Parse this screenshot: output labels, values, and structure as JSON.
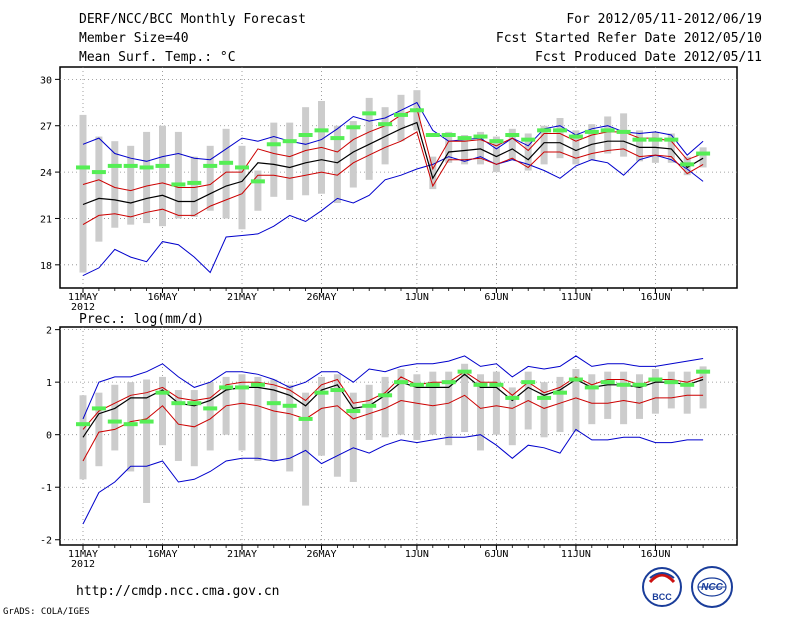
{
  "header": {
    "title": "DERF/NCC/BCC Monthly Forecast",
    "member_size": "Member Size=40",
    "variable": "Mean Surf. Temp.: °C",
    "period": "For 2012/05/11-2012/06/19",
    "start_date": "Fcst Started Refer Date 2012/05/10",
    "produced_date": "Fcst Produced Date 2012/05/11"
  },
  "footer": {
    "url": "http://cmdp.ncc.cma.gov.cn",
    "credit": "GrADS: COLA/IGES",
    "logo_left_text": "BCC",
    "logo_right_text": "NCC"
  },
  "colors": {
    "max_min": "#0000cc",
    "spread": "#cc0000",
    "mean": "#000000",
    "box": "#cccccc",
    "observed": "#55ee55",
    "grid": "#888888"
  },
  "chart_data": [
    {
      "type": "line",
      "title": "Mean Surf. Temp.: °C",
      "ylabel": "°C",
      "ylim": [
        16.5,
        30.8
      ],
      "yticks": [
        "18",
        "21",
        "24",
        "27",
        "30"
      ],
      "ytick_values": [
        18,
        21,
        24,
        27,
        30
      ],
      "x_tick_labels": [
        {
          "day": 0,
          "label": "11MAY",
          "sub": "2012"
        },
        {
          "day": 5,
          "label": "16MAY",
          "sub": ""
        },
        {
          "day": 10,
          "label": "21MAY",
          "sub": ""
        },
        {
          "day": 15,
          "label": "26MAY",
          "sub": ""
        },
        {
          "day": 21,
          "label": "1JUN",
          "sub": ""
        },
        {
          "day": 26,
          "label": "6JUN",
          "sub": ""
        },
        {
          "day": 31,
          "label": "11JUN",
          "sub": ""
        },
        {
          "day": 36,
          "label": "16JUN",
          "sub": ""
        }
      ],
      "x_count": 40,
      "series": [
        {
          "name": "max",
          "values": [
            17.3,
            17.8,
            19.0,
            18.5,
            18.2,
            19.5,
            19.3,
            18.5,
            17.5,
            19.8,
            19.9,
            20.0,
            20.5,
            21.2,
            20.8,
            21.5,
            22.3,
            22.0,
            22.5,
            23.5,
            23.8,
            24.2,
            24.5,
            25.0,
            24.7,
            25.0,
            24.5,
            24.8,
            24.5,
            24.1,
            23.6,
            24.4,
            24.8,
            24.6,
            23.8,
            24.8,
            25.1,
            24.8,
            24.2,
            23.4
          ]
        },
        {
          "name": "min",
          "values": [
            25.8,
            26.2,
            25.2,
            24.9,
            24.7,
            25.0,
            25.2,
            24.9,
            24.8,
            25.5,
            26.2,
            26.0,
            26.3,
            26.0,
            25.8,
            26.1,
            26.8,
            27.6,
            27.3,
            27.5,
            28.0,
            28.5,
            26.7,
            26.0,
            26.1,
            26.2,
            25.5,
            26.2,
            25.7,
            26.8,
            27.0,
            26.4,
            26.8,
            27.0,
            26.6,
            26.5,
            26.6,
            26.4,
            25.1,
            26.0
          ]
        },
        {
          "name": "ens_upper",
          "values": [
            23.2,
            23.5,
            23.0,
            22.8,
            23.1,
            23.3,
            23.0,
            23.0,
            23.2,
            24.0,
            24.0,
            25.5,
            25.2,
            25.0,
            25.4,
            25.6,
            25.3,
            26.1,
            26.6,
            27.0,
            27.7,
            28.1,
            24.2,
            26.0,
            26.0,
            26.1,
            25.7,
            26.2,
            25.4,
            26.5,
            26.5,
            26.0,
            26.4,
            26.6,
            26.6,
            26.2,
            26.2,
            26.0,
            24.8,
            25.2
          ]
        },
        {
          "name": "ens_mean",
          "values": [
            21.9,
            22.3,
            22.2,
            22.0,
            22.3,
            22.5,
            22.1,
            22.1,
            22.6,
            23.1,
            23.4,
            24.6,
            24.5,
            24.3,
            24.6,
            24.8,
            24.6,
            25.3,
            25.8,
            26.3,
            26.8,
            27.2,
            23.6,
            25.3,
            25.4,
            25.5,
            25.0,
            25.5,
            24.8,
            25.9,
            25.9,
            25.4,
            25.8,
            26.0,
            26.0,
            25.6,
            25.6,
            25.5,
            24.3,
            24.9
          ]
        },
        {
          "name": "ens_lower",
          "values": [
            20.6,
            21.2,
            21.3,
            21.1,
            21.4,
            21.6,
            21.2,
            21.2,
            21.8,
            22.2,
            22.6,
            23.8,
            23.8,
            23.6,
            23.8,
            24.0,
            23.8,
            24.6,
            25.1,
            25.6,
            26.0,
            26.6,
            23.1,
            24.8,
            24.8,
            24.9,
            24.5,
            24.9,
            24.3,
            25.3,
            25.3,
            24.9,
            25.2,
            25.4,
            25.5,
            25.0,
            25.1,
            25.0,
            23.9,
            24.5
          ]
        },
        {
          "name": "observed",
          "values": [
            24.3,
            24.0,
            24.4,
            24.4,
            24.3,
            24.4,
            23.2,
            23.3,
            24.4,
            24.6,
            24.3,
            23.4,
            25.8,
            26.0,
            26.4,
            26.7,
            26.2,
            26.9,
            27.8,
            27.1,
            27.7,
            28.0,
            26.4,
            26.4,
            26.2,
            26.3,
            26.0,
            26.4,
            26.1,
            26.7,
            26.7,
            26.3,
            26.6,
            26.7,
            26.6,
            26.1,
            26.1,
            26.1,
            24.5,
            25.2
          ]
        },
        {
          "name": "box_low",
          "values": [
            17.5,
            19.5,
            20.4,
            20.6,
            20.7,
            20.5,
            21.0,
            21.1,
            21.5,
            21.0,
            20.3,
            21.5,
            22.4,
            22.2,
            22.5,
            22.6,
            22.0,
            23.0,
            23.5,
            24.5,
            26.0,
            26.7,
            22.9,
            24.6,
            24.5,
            24.5,
            24.0,
            24.8,
            24.1,
            24.5,
            24.9,
            24.5,
            24.8,
            25.2,
            25.0,
            24.7,
            24.6,
            24.6,
            23.8,
            24.3
          ]
        },
        {
          "name": "box_high",
          "values": [
            27.7,
            26.3,
            26.0,
            25.7,
            26.6,
            27.0,
            26.6,
            25.0,
            25.7,
            26.8,
            25.7,
            24.1,
            27.2,
            27.2,
            28.2,
            28.6,
            27.0,
            27.3,
            28.8,
            28.2,
            29.0,
            29.3,
            25.0,
            26.6,
            26.4,
            26.6,
            26.3,
            26.8,
            26.5,
            27.0,
            27.5,
            26.7,
            27.1,
            27.6,
            27.8,
            26.7,
            26.6,
            26.5,
            25.0,
            25.6
          ]
        }
      ]
    },
    {
      "type": "line",
      "title": "Prec.: log(mm/d)",
      "ylabel": "log(mm/d)",
      "ylim": [
        -2.1,
        2.05
      ],
      "yticks": [
        "-2",
        "-1",
        "0",
        "1",
        "2"
      ],
      "ytick_values": [
        -2,
        -1,
        0,
        1,
        2
      ],
      "x_tick_labels": [
        {
          "day": 0,
          "label": "11MAY",
          "sub": "2012"
        },
        {
          "day": 5,
          "label": "16MAY",
          "sub": ""
        },
        {
          "day": 10,
          "label": "21MAY",
          "sub": ""
        },
        {
          "day": 15,
          "label": "26MAY",
          "sub": ""
        },
        {
          "day": 21,
          "label": "1JUN",
          "sub": ""
        },
        {
          "day": 26,
          "label": "6JUN",
          "sub": ""
        },
        {
          "day": 31,
          "label": "11JUN",
          "sub": ""
        },
        {
          "day": 36,
          "label": "16JUN",
          "sub": ""
        }
      ],
      "x_count": 40,
      "series": [
        {
          "name": "max",
          "values": [
            0.3,
            1.0,
            1.1,
            1.1,
            1.2,
            1.35,
            1.1,
            0.9,
            1.0,
            1.2,
            1.2,
            1.15,
            1.05,
            0.9,
            1.0,
            1.2,
            1.2,
            1.0,
            1.25,
            1.2,
            1.3,
            1.35,
            1.35,
            1.4,
            1.5,
            1.3,
            1.35,
            1.1,
            1.3,
            1.25,
            1.3,
            1.5,
            1.3,
            1.35,
            1.35,
            1.3,
            1.3,
            1.35,
            1.4,
            1.45
          ]
        },
        {
          "name": "min",
          "values": [
            -1.7,
            -1.1,
            -0.9,
            -0.6,
            -0.6,
            -0.5,
            -0.9,
            -0.85,
            -0.7,
            -0.5,
            -0.45,
            -0.45,
            -0.5,
            -0.45,
            -0.3,
            -0.55,
            -0.4,
            -0.25,
            -0.35,
            -0.2,
            -0.1,
            -0.15,
            -0.1,
            -0.05,
            -0.05,
            0.0,
            -0.2,
            -0.45,
            -0.2,
            -0.25,
            -0.35,
            0.1,
            -0.1,
            -0.1,
            -0.05,
            -0.05,
            -0.15,
            -0.15,
            -0.1,
            -0.1
          ]
        },
        {
          "name": "ens_upper",
          "values": [
            0.1,
            0.45,
            0.6,
            0.75,
            0.8,
            0.9,
            0.7,
            0.65,
            0.7,
            0.95,
            1.0,
            1.0,
            0.95,
            0.85,
            0.65,
            0.95,
            1.05,
            0.6,
            0.65,
            0.8,
            1.1,
            0.95,
            1.0,
            1.0,
            1.2,
            1.0,
            1.0,
            0.75,
            1.0,
            0.8,
            0.9,
            1.1,
            0.95,
            1.05,
            1.05,
            0.95,
            1.05,
            1.05,
            1.0,
            1.1
          ]
        },
        {
          "name": "ens_mean",
          "values": [
            -0.05,
            0.4,
            0.5,
            0.7,
            0.7,
            0.85,
            0.6,
            0.55,
            0.65,
            0.85,
            0.9,
            0.9,
            0.85,
            0.75,
            0.55,
            0.85,
            0.95,
            0.5,
            0.55,
            0.75,
            1.0,
            0.9,
            0.9,
            0.9,
            1.15,
            0.9,
            0.9,
            0.65,
            0.9,
            0.75,
            0.85,
            1.05,
            0.9,
            0.95,
            0.95,
            0.9,
            1.0,
            1.0,
            0.95,
            1.05
          ]
        },
        {
          "name": "ens_lower",
          "values": [
            -0.5,
            0.05,
            0.1,
            0.25,
            0.3,
            0.55,
            0.2,
            0.15,
            0.3,
            0.55,
            0.6,
            0.55,
            0.45,
            0.4,
            0.3,
            0.5,
            0.55,
            0.3,
            0.4,
            0.5,
            0.65,
            0.6,
            0.55,
            0.6,
            0.75,
            0.5,
            0.55,
            0.5,
            0.65,
            0.5,
            0.6,
            0.7,
            0.6,
            0.6,
            0.65,
            0.6,
            0.7,
            0.7,
            0.75,
            0.75
          ]
        },
        {
          "name": "observed",
          "values": [
            0.2,
            0.5,
            0.25,
            0.2,
            0.25,
            0.8,
            0.6,
            0.6,
            0.5,
            0.9,
            0.9,
            0.95,
            0.6,
            0.55,
            0.3,
            0.8,
            0.85,
            0.45,
            0.55,
            0.75,
            1.0,
            0.95,
            0.95,
            1.0,
            1.2,
            0.95,
            0.95,
            0.7,
            1.0,
            0.7,
            0.8,
            1.05,
            0.9,
            1.0,
            0.95,
            0.95,
            1.05,
            1.0,
            0.95,
            1.2
          ]
        },
        {
          "name": "box_low",
          "values": [
            -0.85,
            -0.6,
            -0.3,
            -0.7,
            -1.3,
            -0.2,
            -0.5,
            -0.6,
            -0.3,
            0.0,
            -0.3,
            -0.5,
            -0.5,
            -0.7,
            -1.35,
            -0.4,
            -0.8,
            -0.9,
            -0.1,
            -0.05,
            0.0,
            -0.1,
            0.0,
            -0.2,
            0.05,
            -0.3,
            0.0,
            -0.2,
            0.1,
            -0.05,
            0.05,
            0.05,
            0.2,
            0.3,
            0.2,
            0.3,
            0.4,
            0.5,
            0.4,
            0.5
          ]
        },
        {
          "name": "box_high",
          "values": [
            0.75,
            0.8,
            0.95,
            1.0,
            1.05,
            1.1,
            0.85,
            0.85,
            1.0,
            1.1,
            1.15,
            1.1,
            1.05,
            0.95,
            0.8,
            1.1,
            1.15,
            0.8,
            0.95,
            1.1,
            1.25,
            1.15,
            1.2,
            1.2,
            1.35,
            1.15,
            1.2,
            0.9,
            1.2,
            1.0,
            1.1,
            1.25,
            1.15,
            1.2,
            1.2,
            1.15,
            1.25,
            1.2,
            1.2,
            1.3
          ]
        }
      ]
    }
  ]
}
